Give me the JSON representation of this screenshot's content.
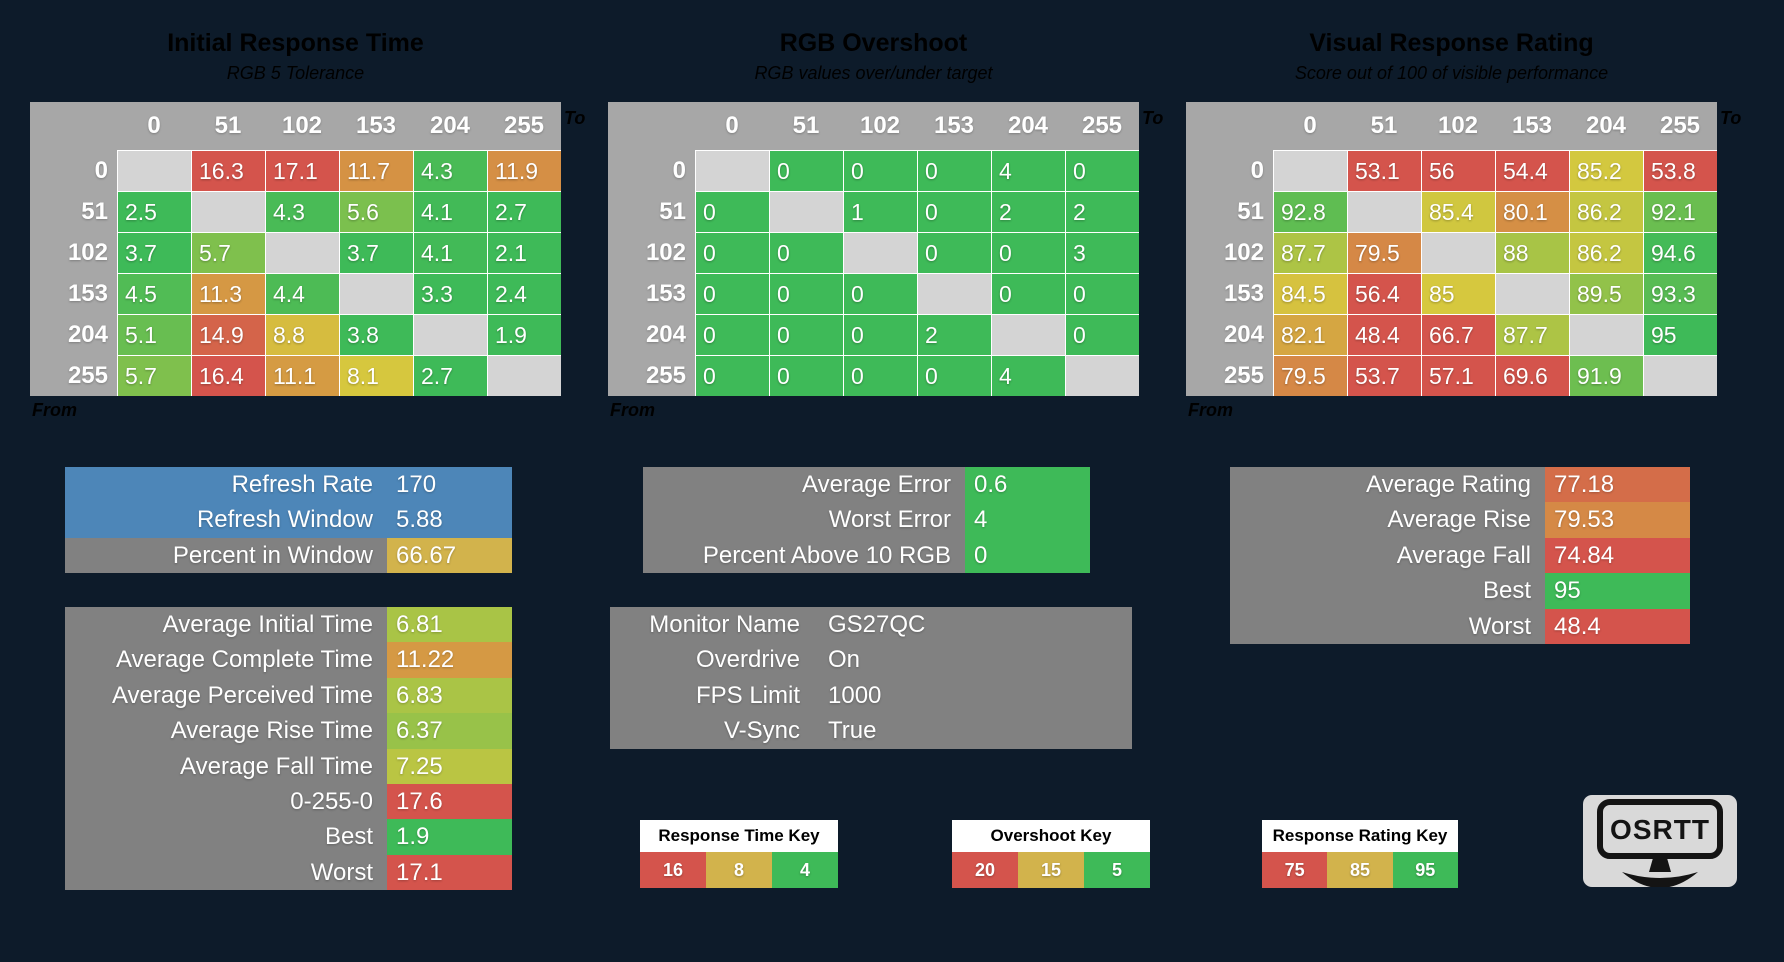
{
  "colors": {
    "background": "#0d1b2a",
    "red": "#d4544c",
    "yellow": "#d6c83e",
    "green": "#3eba58",
    "gold": "#d2b34c",
    "blue": "#4d86b8",
    "box_gray": "#818181",
    "header_gray": "#a7a7a7",
    "diag_gray": "#d4d4d4",
    "key_title_bg": "#ffffff",
    "logo_bg": "#d9d9d9",
    "logo_fg": "#141414"
  },
  "chart_data": [
    {
      "type": "heatmap",
      "title": "Initial Response Time",
      "subtitle": "RGB 5 Tolerance",
      "x_label": "To",
      "y_label": "From",
      "scale": "time",
      "columns": [
        "0",
        "51",
        "102",
        "153",
        "204",
        "255"
      ],
      "row_labels": [
        "0",
        "51",
        "102",
        "153",
        "204",
        "255"
      ],
      "values": [
        [
          null,
          16.3,
          17.1,
          11.7,
          4.3,
          11.9
        ],
        [
          2.5,
          null,
          4.3,
          5.6,
          4.1,
          2.7
        ],
        [
          3.7,
          5.7,
          null,
          3.7,
          4.1,
          2.1
        ],
        [
          4.5,
          11.3,
          4.4,
          null,
          3.3,
          2.4
        ],
        [
          5.1,
          14.9,
          8.8,
          3.8,
          null,
          1.9
        ],
        [
          5.7,
          16.4,
          11.1,
          8.1,
          2.7,
          null
        ]
      ]
    },
    {
      "type": "heatmap",
      "title": "RGB Overshoot",
      "subtitle": "RGB values over/under target",
      "x_label": "To",
      "y_label": "From",
      "scale": "overshoot",
      "columns": [
        "0",
        "51",
        "102",
        "153",
        "204",
        "255"
      ],
      "row_labels": [
        "0",
        "51",
        "102",
        "153",
        "204",
        "255"
      ],
      "values": [
        [
          null,
          0,
          0,
          0,
          4,
          0
        ],
        [
          0,
          null,
          1,
          0,
          2,
          2
        ],
        [
          0,
          0,
          null,
          0,
          0,
          3
        ],
        [
          0,
          0,
          0,
          null,
          0,
          0
        ],
        [
          0,
          0,
          0,
          2,
          null,
          0
        ],
        [
          0,
          0,
          0,
          0,
          4,
          null
        ]
      ]
    },
    {
      "type": "heatmap",
      "title": "Visual Response Rating",
      "subtitle": "Score out of 100 of visible performance",
      "x_label": "To",
      "y_label": "From",
      "scale": "rating",
      "columns": [
        "0",
        "51",
        "102",
        "153",
        "204",
        "255"
      ],
      "row_labels": [
        "0",
        "51",
        "102",
        "153",
        "204",
        "255"
      ],
      "values": [
        [
          null,
          53.1,
          56,
          54.4,
          85.2,
          53.8
        ],
        [
          92.8,
          null,
          85.4,
          80.1,
          86.2,
          92.1
        ],
        [
          87.7,
          79.5,
          null,
          88,
          86.2,
          94.6
        ],
        [
          84.5,
          56.4,
          85,
          null,
          89.5,
          93.3
        ],
        [
          82.1,
          48.4,
          66.7,
          87.7,
          null,
          95
        ],
        [
          79.5,
          53.7,
          57.1,
          69.6,
          91.9,
          null
        ]
      ]
    }
  ],
  "summaries": {
    "refresh": {
      "rows": [
        {
          "label": "Refresh Rate",
          "value": "170",
          "row_bg": "blue"
        },
        {
          "label": "Refresh Window",
          "value": "5.88",
          "row_bg": "blue"
        },
        {
          "label": "Percent in Window",
          "value": "66.67",
          "value_bg": "gold"
        }
      ]
    },
    "time": {
      "scale": "time",
      "rows": [
        {
          "label": "Average Initial Time",
          "value": "6.81"
        },
        {
          "label": "Average Complete Time",
          "value": "11.22"
        },
        {
          "label": "Average Perceived Time",
          "value": "6.83"
        },
        {
          "label": "Average Rise Time",
          "value": "6.37"
        },
        {
          "label": "Average Fall Time",
          "value": "7.25"
        },
        {
          "label": "0-255-0",
          "value": "17.6"
        },
        {
          "label": "Best",
          "value": "1.9"
        },
        {
          "label": "Worst",
          "value": "17.1"
        }
      ]
    },
    "error": {
      "scale": "overshoot",
      "rows": [
        {
          "label": "Average Error",
          "value": "0.6"
        },
        {
          "label": "Worst Error",
          "value": "4"
        },
        {
          "label": "Percent Above 10 RGB",
          "value": "0"
        }
      ]
    },
    "monitor": {
      "plain": true,
      "rows": [
        {
          "label": "Monitor Name",
          "value": "GS27QC"
        },
        {
          "label": "Overdrive",
          "value": "On"
        },
        {
          "label": "FPS Limit",
          "value": "1000"
        },
        {
          "label": "V-Sync",
          "value": "True"
        }
      ]
    },
    "rating": {
      "scale": "rating",
      "rows": [
        {
          "label": "Average Rating",
          "value": "77.18"
        },
        {
          "label": "Average Rise",
          "value": "79.53"
        },
        {
          "label": "Average Fall",
          "value": "74.84"
        },
        {
          "label": "Best",
          "value": "95"
        },
        {
          "label": "Worst",
          "value": "48.4"
        }
      ]
    }
  },
  "keys": [
    {
      "title": "Response Time Key",
      "stops": [
        "16",
        "8",
        "4"
      ]
    },
    {
      "title": "Overshoot Key",
      "stops": [
        "20",
        "15",
        "5"
      ]
    },
    {
      "title": "Response Rating Key",
      "stops": [
        "75",
        "85",
        "95"
      ]
    }
  ],
  "logo": {
    "text": "OSRTT"
  }
}
